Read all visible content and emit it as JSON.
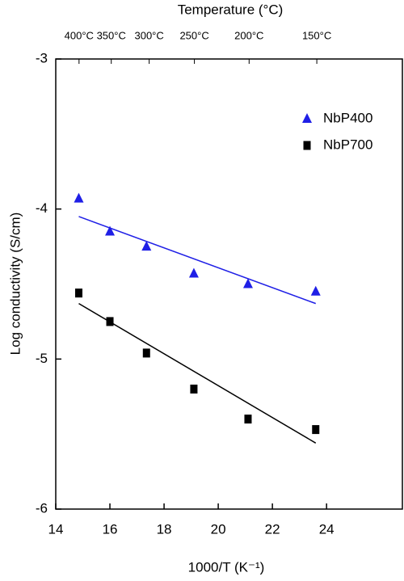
{
  "chart_data": {
    "type": "scatter",
    "title": "Temperature (°C)",
    "x_label": "1000/T (K⁻¹)",
    "y_label": "Log conductivity (S/cm)",
    "xlim": [
      14,
      26.8
    ],
    "xticks": [
      14,
      16,
      18,
      20,
      22,
      24
    ],
    "ylim": [
      -6,
      -3
    ],
    "yticks": [
      -6,
      -5,
      -4,
      -3
    ],
    "x2ticks": [
      {
        "value": 14.86,
        "label": "400°C"
      },
      {
        "value": 16.05,
        "label": "350°C"
      },
      {
        "value": 17.45,
        "label": "300°C"
      },
      {
        "value": 19.12,
        "label": "250°C"
      },
      {
        "value": 21.14,
        "label": "200°C"
      },
      {
        "value": 23.64,
        "label": "150°C"
      }
    ],
    "legend": "upper right",
    "series": [
      {
        "name": "NbP400",
        "color": "#1f1fe6",
        "marker": "triangle",
        "x": [
          14.85,
          16.0,
          17.35,
          19.1,
          21.1,
          23.6
        ],
        "values": [
          -3.93,
          -4.15,
          -4.25,
          -4.43,
          -4.5,
          -4.55
        ],
        "fit": {
          "x": [
            14.85,
            23.6
          ],
          "values": [
            -4.05,
            -4.63
          ]
        }
      },
      {
        "name": "NbP700",
        "color": "#000000",
        "marker": "square",
        "x": [
          14.85,
          16.0,
          17.35,
          19.1,
          21.1,
          23.6
        ],
        "values": [
          -4.56,
          -4.75,
          -4.96,
          -5.2,
          -5.4,
          -5.47
        ],
        "fit": {
          "x": [
            14.85,
            23.6
          ],
          "values": [
            -4.63,
            -5.56
          ]
        }
      }
    ]
  }
}
